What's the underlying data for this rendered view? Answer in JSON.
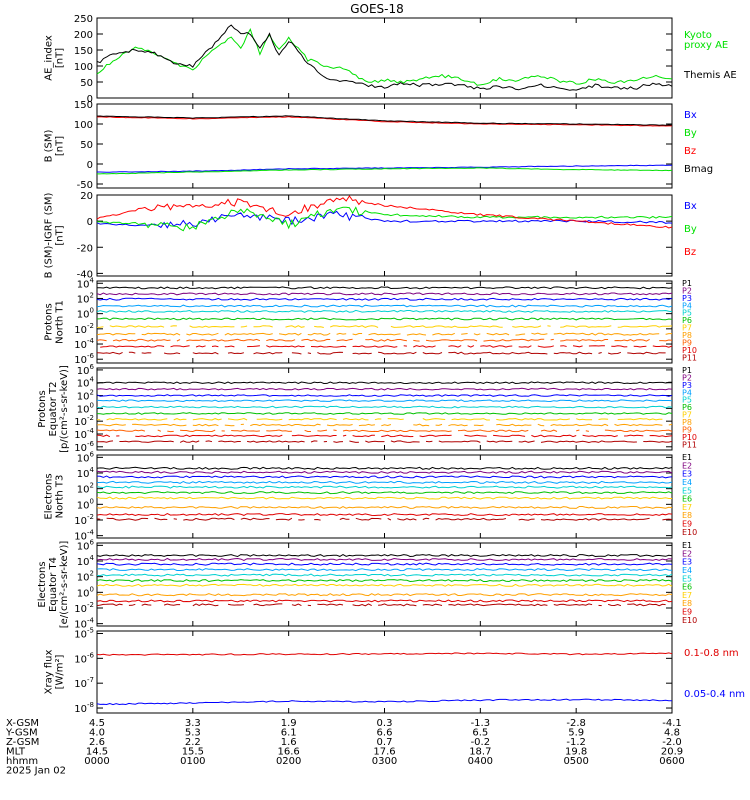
{
  "title": "GOES-18",
  "chart_data": [
    {
      "type": "line",
      "ylabel": [
        "AE_index",
        "[nT]"
      ],
      "ylim": [
        0,
        250
      ],
      "yticks": [
        "0",
        "50",
        "100",
        "150",
        "200",
        "250"
      ],
      "series": [
        {
          "name": "Kyoto proxy AE",
          "label_lines": [
            "Kyoto",
            "proxy AE"
          ],
          "color": "#00e000",
          "x": [
            0,
            12,
            24,
            36,
            48,
            60,
            72,
            84,
            90,
            96,
            102,
            108,
            114,
            120,
            132,
            144,
            156,
            168,
            180,
            192,
            204,
            216,
            228,
            240,
            252,
            264,
            276,
            288,
            300,
            312,
            324,
            336,
            348,
            360,
            372,
            384,
            396,
            408,
            420,
            432,
            444,
            456,
            468,
            480,
            492,
            504,
            516,
            528,
            540,
            552,
            564,
            576,
            588,
            600
          ],
          "y": [
            80,
            120,
            160,
            140,
            110,
            90,
            150,
            190,
            160,
            210,
            140,
            200,
            150,
            190,
            120,
            100,
            90,
            50,
            55,
            50,
            60,
            70,
            60,
            40,
            60,
            55,
            70,
            55,
            45,
            60,
            50,
            55,
            70,
            60,
            50,
            70,
            60,
            80,
            130,
            160,
            150,
            120,
            140,
            130,
            125,
            110,
            120,
            100,
            110,
            95,
            85,
            100,
            60,
            110
          ]
        },
        {
          "name": "Themis AE",
          "label_lines": [
            "Themis AE"
          ],
          "color": "#000000",
          "x": [
            0,
            12,
            24,
            36,
            48,
            60,
            72,
            84,
            90,
            96,
            102,
            108,
            114,
            120,
            132,
            144,
            156,
            168,
            180,
            192,
            204,
            216,
            228,
            240,
            252,
            264,
            276,
            288,
            300,
            312,
            324,
            336,
            348,
            360,
            372,
            384,
            396,
            408,
            420,
            432,
            444,
            456,
            468,
            480,
            492,
            504,
            516,
            528,
            540,
            552,
            564,
            576,
            588,
            600
          ],
          "y": [
            110,
            140,
            150,
            140,
            110,
            100,
            160,
            230,
            200,
            200,
            160,
            200,
            130,
            180,
            110,
            60,
            50,
            40,
            35,
            45,
            40,
            45,
            40,
            30,
            35,
            30,
            40,
            35,
            25,
            40,
            30,
            30,
            45,
            40,
            30,
            45,
            50,
            60,
            110,
            140,
            130,
            110,
            120,
            110,
            110,
            100,
            105,
            95,
            100,
            90,
            90,
            90,
            80,
            95
          ]
        }
      ]
    },
    {
      "type": "line",
      "ylabel": [
        "B (SM)",
        "[nT]"
      ],
      "ylim": [
        -60,
        150
      ],
      "yticks": [
        "-50",
        "0",
        "50",
        "100",
        "150"
      ],
      "series": [
        {
          "name": "Bx",
          "color": "#0000ff",
          "x": [
            0,
            60,
            120,
            180,
            240,
            300,
            360,
            420,
            480,
            540,
            600
          ],
          "y": [
            -20,
            -18,
            -12,
            -10,
            -8,
            -5,
            -3,
            0,
            2,
            5,
            8
          ]
        },
        {
          "name": "By",
          "color": "#00e000",
          "x": [
            0,
            60,
            120,
            180,
            240,
            300,
            360,
            420,
            480,
            540,
            600
          ],
          "y": [
            -25,
            -20,
            -15,
            -12,
            -10,
            -14,
            -16,
            -18,
            -20,
            -20,
            -22
          ]
        },
        {
          "name": "Bz",
          "color": "#ff0000",
          "x": [
            0,
            60,
            120,
            180,
            240,
            300,
            360,
            420,
            480,
            540,
            600
          ],
          "y": [
            118,
            113,
            118,
            106,
            100,
            98,
            95,
            90,
            85,
            78,
            65
          ]
        },
        {
          "name": "Bmag",
          "color": "#000000",
          "x": [
            0,
            60,
            120,
            180,
            240,
            300,
            360,
            420,
            480,
            540,
            600
          ],
          "y": [
            120,
            115,
            120,
            108,
            102,
            100,
            97,
            92,
            87,
            80,
            67
          ]
        }
      ]
    },
    {
      "type": "line",
      "ylabel": [
        "B (SM)-IGRF (SM)",
        "[nT]"
      ],
      "ylim": [
        -42,
        20
      ],
      "yticks": [
        "-40",
        "-20",
        "0",
        "20"
      ],
      "series": [
        {
          "name": "Bx",
          "color": "#0000ff",
          "x": [
            0,
            30,
            60,
            90,
            120,
            150,
            180,
            240,
            300,
            360,
            420,
            480,
            540,
            600
          ],
          "y": [
            -2,
            -3,
            -2,
            5,
            0,
            5,
            0,
            0,
            0,
            -1,
            -2,
            -3,
            -5,
            -10
          ]
        },
        {
          "name": "By",
          "color": "#00e000",
          "x": [
            0,
            30,
            60,
            90,
            120,
            150,
            180,
            240,
            300,
            360,
            420,
            480,
            540,
            600
          ],
          "y": [
            -1,
            -2,
            -5,
            8,
            -3,
            10,
            5,
            3,
            3,
            3,
            2,
            3,
            2,
            3
          ]
        },
        {
          "name": "Bz",
          "color": "#ff0000",
          "x": [
            0,
            30,
            60,
            90,
            120,
            150,
            180,
            240,
            300,
            360,
            420,
            480,
            540,
            600
          ],
          "y": [
            2,
            10,
            10,
            15,
            5,
            18,
            12,
            5,
            0,
            -5,
            -12,
            -15,
            -25,
            -40
          ]
        }
      ]
    },
    {
      "type": "line",
      "ylabel": [
        "Protons",
        "North T1"
      ],
      "ylog": true,
      "ylim_exp": [
        -6.5,
        4.3
      ],
      "yticks": [
        {
          "base": "10",
          "exp": "4"
        },
        {
          "base": "10",
          "exp": "2"
        },
        {
          "base": "10",
          "exp": "0"
        },
        {
          "base": "10",
          "exp": "-2"
        },
        {
          "base": "10",
          "exp": "-4"
        },
        {
          "base": "10",
          "exp": "-6"
        }
      ],
      "series": [
        {
          "name": "P1",
          "color": "#000000",
          "log_level": 3.4
        },
        {
          "name": "P2",
          "color": "#7f007f",
          "log_level": 2.6
        },
        {
          "name": "P3",
          "color": "#0000ff",
          "log_level": 1.9
        },
        {
          "name": "P4",
          "color": "#00a0ff",
          "log_level": 1.0
        },
        {
          "name": "P5",
          "color": "#00d0d0",
          "log_level": 0.3
        },
        {
          "name": "P6",
          "color": "#00c000",
          "log_level": -0.7
        },
        {
          "name": "P7",
          "color": "#ffd000",
          "log_level": -1.7
        },
        {
          "name": "P8",
          "color": "#ffa000",
          "log_level": -2.7
        },
        {
          "name": "P9",
          "color": "#ff6000",
          "log_level": -3.5
        },
        {
          "name": "P10",
          "color": "#e00000",
          "log_level": -4.3
        },
        {
          "name": "P11",
          "color": "#b00000",
          "log_level": -5.2
        }
      ]
    },
    {
      "type": "line",
      "ylabel": [
        "Protons",
        "Equator T2",
        "[p/(cm²-s-sr-keV)]"
      ],
      "ylog": true,
      "ylim_exp": [
        -6.5,
        6.3
      ],
      "yticks": [
        {
          "base": "10",
          "exp": "6"
        },
        {
          "base": "10",
          "exp": "4"
        },
        {
          "base": "10",
          "exp": "2"
        },
        {
          "base": "10",
          "exp": "0"
        },
        {
          "base": "10",
          "exp": "-2"
        },
        {
          "base": "10",
          "exp": "-4"
        },
        {
          "base": "10",
          "exp": "-6"
        }
      ],
      "series": [
        {
          "name": "P1",
          "color": "#000000",
          "log_level": 4.0
        },
        {
          "name": "P2",
          "color": "#7f007f",
          "log_level": 3.0
        },
        {
          "name": "P3",
          "color": "#0000ff",
          "log_level": 2.0
        },
        {
          "name": "P4",
          "color": "#00a0ff",
          "log_level": 1.2
        },
        {
          "name": "P5",
          "color": "#00d0d0",
          "log_level": 0.2
        },
        {
          "name": "P6",
          "color": "#00c000",
          "log_level": -0.8
        },
        {
          "name": "P7",
          "color": "#ffd000",
          "log_level": -1.7
        },
        {
          "name": "P8",
          "color": "#ffa000",
          "log_level": -2.6
        },
        {
          "name": "P9",
          "color": "#ff6000",
          "log_level": -3.5
        },
        {
          "name": "P10",
          "color": "#e00000",
          "log_level": -4.3
        },
        {
          "name": "P11",
          "color": "#b00000",
          "log_level": -5.2
        }
      ]
    },
    {
      "type": "line",
      "ylabel": [
        "Electrons",
        "North T3"
      ],
      "ylog": true,
      "ylim_exp": [
        -4.3,
        6.3
      ],
      "yticks": [
        {
          "base": "10",
          "exp": "6"
        },
        {
          "base": "10",
          "exp": "4"
        },
        {
          "base": "10",
          "exp": "2"
        },
        {
          "base": "10",
          "exp": "0"
        },
        {
          "base": "10",
          "exp": "-2"
        },
        {
          "base": "10",
          "exp": "-4"
        }
      ],
      "series": [
        {
          "name": "E1",
          "color": "#000000",
          "log_level": 4.6
        },
        {
          "name": "E2",
          "color": "#7f007f",
          "log_level": 4.1
        },
        {
          "name": "E3",
          "color": "#0000ff",
          "log_level": 3.5
        },
        {
          "name": "E4",
          "color": "#00a0ff",
          "log_level": 2.8
        },
        {
          "name": "E5",
          "color": "#00d0d0",
          "log_level": 2.2
        },
        {
          "name": "E6",
          "color": "#00c000",
          "log_level": 1.5
        },
        {
          "name": "E7",
          "color": "#ffd000",
          "log_level": 0.8
        },
        {
          "name": "E8",
          "color": "#ffa000",
          "log_level": -0.4
        },
        {
          "name": "E9",
          "color": "#e00000",
          "log_level": -1.3
        },
        {
          "name": "E10",
          "color": "#b00000",
          "log_level": -1.9
        }
      ]
    },
    {
      "type": "line",
      "ylabel": [
        "Electrons",
        "Equator T4",
        "[e/(cm²-s-sr-keV)]"
      ],
      "ylog": true,
      "ylim_exp": [
        -4.3,
        6.3
      ],
      "yticks": [
        {
          "base": "10",
          "exp": "6"
        },
        {
          "base": "10",
          "exp": "4"
        },
        {
          "base": "10",
          "exp": "2"
        },
        {
          "base": "10",
          "exp": "0"
        },
        {
          "base": "10",
          "exp": "-2"
        },
        {
          "base": "10",
          "exp": "-4"
        }
      ],
      "series": [
        {
          "name": "E1",
          "color": "#000000",
          "log_level": 4.7
        },
        {
          "name": "E2",
          "color": "#7f007f",
          "log_level": 4.2
        },
        {
          "name": "E3",
          "color": "#0000ff",
          "log_level": 3.6
        },
        {
          "name": "E4",
          "color": "#00a0ff",
          "log_level": 2.9
        },
        {
          "name": "E5",
          "color": "#00d0d0",
          "log_level": 2.2
        },
        {
          "name": "E6",
          "color": "#00c000",
          "log_level": 1.5
        },
        {
          "name": "E7",
          "color": "#ffd000",
          "log_level": 0.9
        },
        {
          "name": "E8",
          "color": "#ffa000",
          "log_level": -0.3
        },
        {
          "name": "E9",
          "color": "#e00000",
          "log_level": -1.1
        },
        {
          "name": "E10",
          "color": "#b00000",
          "log_level": -1.6
        }
      ]
    },
    {
      "type": "line",
      "ylabel": [
        "Xray flux",
        "[W/m²]"
      ],
      "ylog": true,
      "ylim_exp": [
        -8.2,
        -4.9
      ],
      "yticks": [
        {
          "base": "10",
          "exp": "-5"
        },
        {
          "base": "10",
          "exp": "-6"
        },
        {
          "base": "10",
          "exp": "-7"
        },
        {
          "base": "10",
          "exp": "-8"
        }
      ],
      "series": [
        {
          "name": "0.1-0.8 nm",
          "color": "#e00000",
          "x": [
            0,
            60,
            120,
            180,
            240,
            300,
            360,
            420,
            480,
            540,
            570,
            600
          ],
          "log_y": [
            -5.85,
            -5.85,
            -5.83,
            -5.82,
            -5.8,
            -5.83,
            -5.8,
            -5.78,
            -5.75,
            -5.72,
            -5.6,
            -5.65
          ]
        },
        {
          "name": "0.05-0.4 nm",
          "color": "#0000ff",
          "x": [
            0,
            60,
            120,
            180,
            240,
            300,
            360,
            420,
            480,
            540,
            555,
            570,
            585,
            600
          ],
          "log_y": [
            -7.85,
            -7.8,
            -7.72,
            -7.75,
            -7.68,
            -7.66,
            -7.7,
            -7.65,
            -7.62,
            -7.6,
            -7.55,
            -7.05,
            -7.35,
            -7.1
          ]
        }
      ]
    }
  ],
  "x_axis": {
    "rows": [
      {
        "label": "X-GSM",
        "values": [
          "4.5",
          "3.3",
          "1.9",
          "0.3",
          "-1.3",
          "-2.8",
          "-4.1"
        ]
      },
      {
        "label": "Y-GSM",
        "values": [
          "4.0",
          "5.3",
          "6.1",
          "6.6",
          "6.5",
          "5.9",
          "4.8"
        ]
      },
      {
        "label": "Z-GSM",
        "values": [
          "2.6",
          "2.2",
          "1.6",
          "0.7",
          "-0.2",
          "-1.2",
          "-2.0"
        ]
      },
      {
        "label": "MLT",
        "values": [
          "14.5",
          "15.5",
          "16.6",
          "17.6",
          "18.7",
          "19.8",
          "20.9"
        ]
      },
      {
        "label": "hhmm",
        "values": [
          "0000",
          "0100",
          "0200",
          "0300",
          "0400",
          "0500",
          "0600"
        ]
      }
    ],
    "date": "2025 Jan 02",
    "minutes": [
      0,
      60,
      120,
      180,
      240,
      300,
      360
    ]
  }
}
